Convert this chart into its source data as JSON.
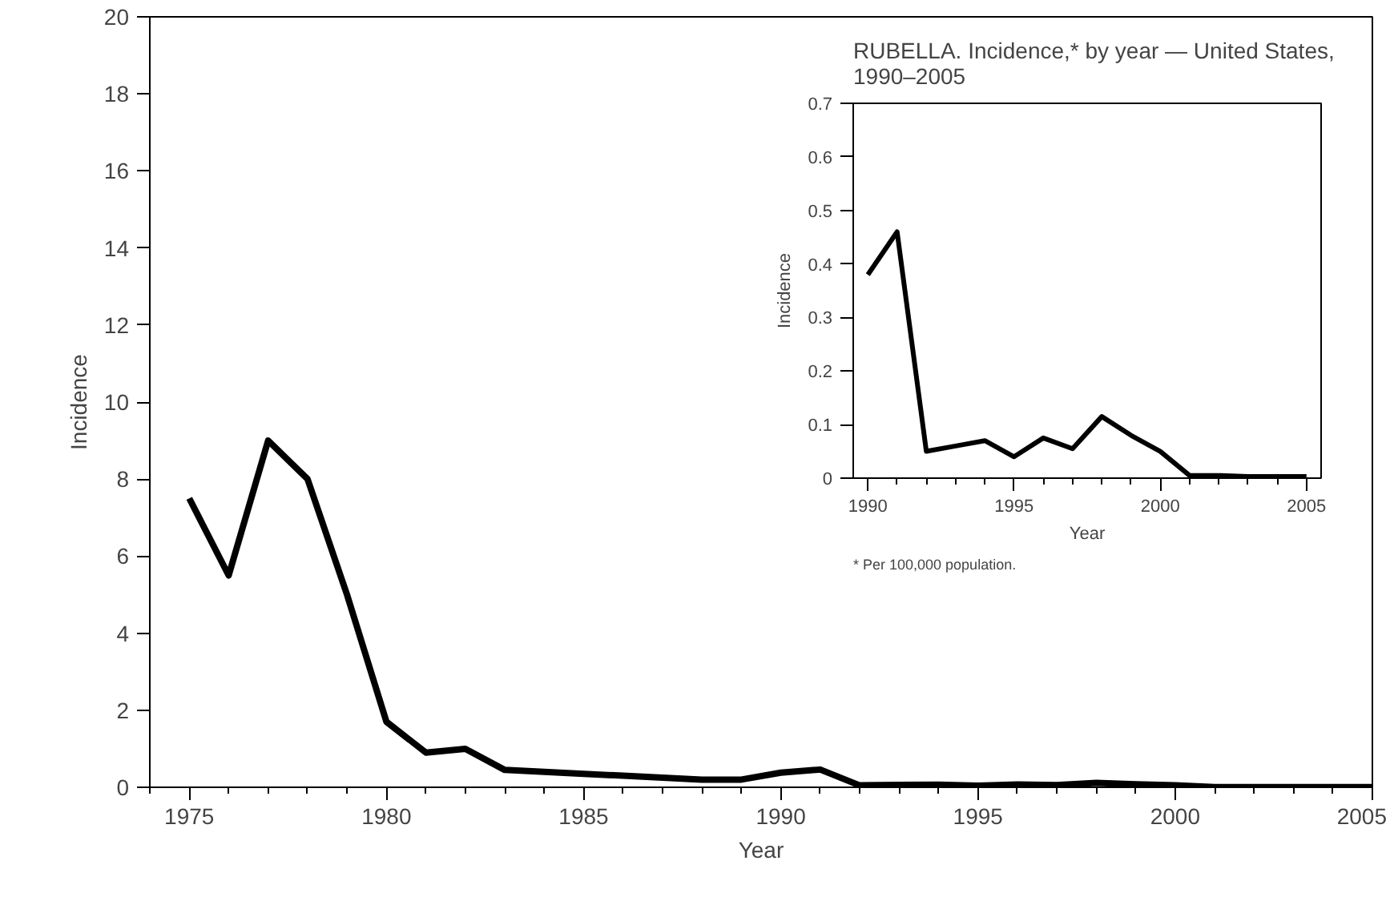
{
  "chart_data": [
    {
      "type": "line",
      "xlabel": "Year",
      "ylabel": "Incidence",
      "xlim": [
        1974,
        2005
      ],
      "ylim": [
        0,
        20
      ],
      "xticks": [
        1975,
        1980,
        1985,
        1990,
        1995,
        2000,
        2005
      ],
      "yticks": [
        0,
        2,
        4,
        6,
        8,
        10,
        12,
        14,
        16,
        18,
        20
      ],
      "x": [
        1975,
        1976,
        1977,
        1978,
        1979,
        1980,
        1981,
        1982,
        1983,
        1984,
        1985,
        1986,
        1987,
        1988,
        1989,
        1990,
        1991,
        1992,
        1993,
        1994,
        1995,
        1996,
        1997,
        1998,
        1999,
        2000,
        2001,
        2002,
        2003,
        2004,
        2005
      ],
      "series": [
        {
          "color": "#000000",
          "values": [
            7.5,
            5.5,
            9.0,
            8.0,
            5.0,
            1.7,
            0.9,
            1.0,
            0.45,
            0.4,
            0.35,
            0.3,
            0.25,
            0.2,
            0.2,
            0.38,
            0.46,
            0.05,
            0.06,
            0.07,
            0.04,
            0.075,
            0.055,
            0.115,
            0.08,
            0.05,
            0.005,
            0.005,
            0.003,
            0.003,
            0.003
          ]
        }
      ]
    },
    {
      "type": "line",
      "title": "RUBELLA. Incidence,* by year — United States, 1990–2005",
      "xlabel": "Year",
      "ylabel": "Incidence",
      "xlim": [
        1989.5,
        2005.5
      ],
      "ylim": [
        0,
        0.7
      ],
      "xticks": [
        1990,
        1995,
        2000,
        2005
      ],
      "yticks": [
        0,
        0.1,
        0.2,
        0.3,
        0.4,
        0.5,
        0.6,
        0.7
      ],
      "annotations": [
        "* Per 100,000 population."
      ],
      "x": [
        1990,
        1991,
        1992,
        1993,
        1994,
        1995,
        1996,
        1997,
        1998,
        1999,
        2000,
        2001,
        2002,
        2003,
        2004,
        2005
      ],
      "series": [
        {
          "color": "#000000",
          "values": [
            0.38,
            0.46,
            0.05,
            0.06,
            0.07,
            0.04,
            0.075,
            0.055,
            0.115,
            0.08,
            0.05,
            0.005,
            0.005,
            0.003,
            0.003,
            0.003
          ]
        }
      ]
    }
  ]
}
